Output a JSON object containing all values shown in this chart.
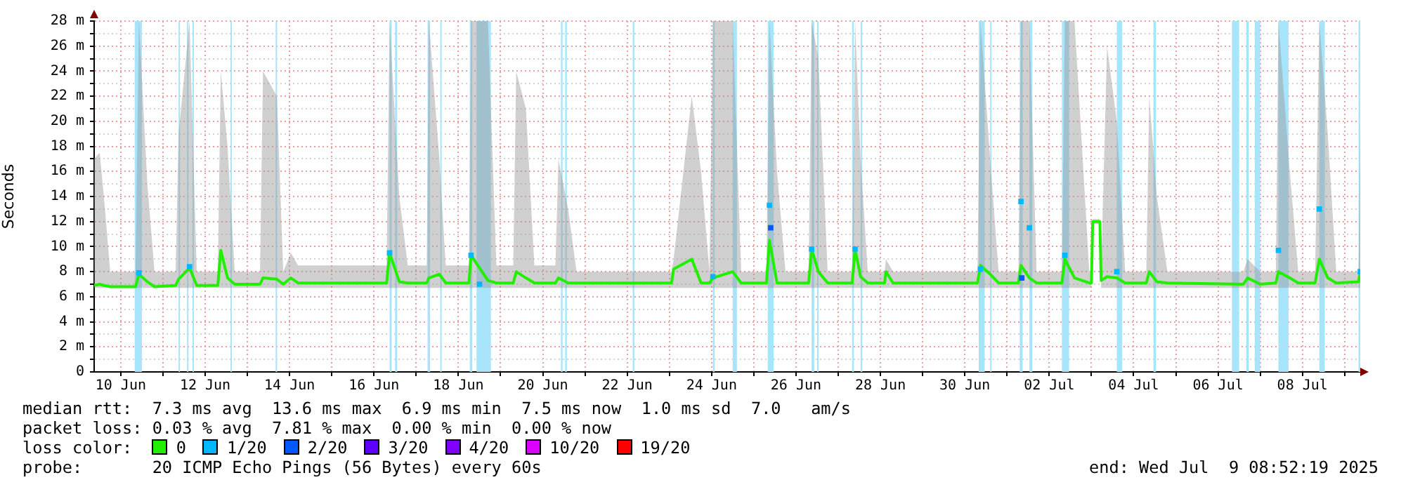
{
  "chart_data": {
    "type": "line",
    "ylabel": "Seconds",
    "legend_title": "loss color:",
    "legend": "bottom",
    "grid": true,
    "marker": "none",
    "line_style": "solid",
    "xlim": [
      "2025-06-09T08:52",
      "2025-07-09T08:52"
    ],
    "xticks": [
      {
        "value": "2025-06-10",
        "label": "10 Jun"
      },
      {
        "value": "2025-06-11",
        "label": null
      },
      {
        "value": "2025-06-12",
        "label": "12 Jun"
      },
      {
        "value": "2025-06-13",
        "label": null
      },
      {
        "value": "2025-06-14",
        "label": "14 Jun"
      },
      {
        "value": "2025-06-15",
        "label": null
      },
      {
        "value": "2025-06-16",
        "label": "16 Jun"
      },
      {
        "value": "2025-06-17",
        "label": null
      },
      {
        "value": "2025-06-18",
        "label": "18 Jun"
      },
      {
        "value": "2025-06-19",
        "label": null
      },
      {
        "value": "2025-06-20",
        "label": "20 Jun"
      },
      {
        "value": "2025-06-21",
        "label": null
      },
      {
        "value": "2025-06-22",
        "label": "22 Jun"
      },
      {
        "value": "2025-06-23",
        "label": null
      },
      {
        "value": "2025-06-24",
        "label": "24 Jun"
      },
      {
        "value": "2025-06-25",
        "label": null
      },
      {
        "value": "2025-06-26",
        "label": "26 Jun"
      },
      {
        "value": "2025-06-27",
        "label": null
      },
      {
        "value": "2025-06-28",
        "label": "28 Jun"
      },
      {
        "value": "2025-06-29",
        "label": null
      },
      {
        "value": "2025-06-30",
        "label": "30 Jun"
      },
      {
        "value": "2025-07-01",
        "label": null
      },
      {
        "value": "2025-07-02",
        "label": "02 Jul"
      },
      {
        "value": "2025-07-03",
        "label": null
      },
      {
        "value": "2025-07-04",
        "label": "04 Jul"
      },
      {
        "value": "2025-07-05",
        "label": null
      },
      {
        "value": "2025-07-06",
        "label": "06 Jul"
      },
      {
        "value": "2025-07-07",
        "label": null
      },
      {
        "value": "2025-07-08",
        "label": "08 Jul"
      },
      {
        "value": "2025-07-09",
        "label": null
      }
    ],
    "ylim": [
      0,
      28
    ],
    "yticks": [
      0,
      {
        "value": 1,
        "label": null
      },
      {
        "value": 2,
        "label": "2 m"
      },
      {
        "value": 3,
        "label": null
      },
      {
        "value": 4,
        "label": "4 m"
      },
      {
        "value": 5,
        "label": null
      },
      {
        "value": 6,
        "label": "6 m"
      },
      {
        "value": 7,
        "label": null
      },
      {
        "value": 8,
        "label": "8 m"
      },
      {
        "value": 9,
        "label": null
      },
      {
        "value": 10,
        "label": "10 m"
      },
      {
        "value": 11,
        "label": null
      },
      {
        "value": 12,
        "label": "12 m"
      },
      {
        "value": 13,
        "label": null
      },
      {
        "value": 14,
        "label": "14 m"
      },
      {
        "value": 15,
        "label": null
      },
      {
        "value": 16,
        "label": "16 m"
      },
      {
        "value": 17,
        "label": null
      },
      {
        "value": 18,
        "label": "18 m"
      },
      {
        "value": 19,
        "label": null
      },
      {
        "value": 20,
        "label": "20 m"
      },
      {
        "value": 21,
        "label": null
      },
      {
        "value": 22,
        "label": "22 m"
      },
      {
        "value": 23,
        "label": null
      },
      {
        "value": 24,
        "label": "24 m"
      },
      {
        "value": 25,
        "label": null
      },
      {
        "value": 26,
        "label": "26 m"
      },
      {
        "value": 27,
        "label": null
      },
      {
        "value": 28,
        "label": "28 m"
      }
    ],
    "bands": [
      {
        "axis": "x",
        "from": "2025-06-10T07:55",
        "to": "2025-06-10T12:00",
        "color": "#a8e4fa"
      },
      {
        "axis": "x",
        "from": "2025-06-11T08:53",
        "to": "2025-06-11T09:36",
        "color": "#a8e4fa"
      },
      {
        "axis": "x",
        "from": "2025-06-11T13:41",
        "to": "2025-06-11T14:24",
        "color": "#a8e4fa"
      },
      {
        "axis": "x",
        "from": "2025-06-11T16:48",
        "to": "2025-06-11T17:31",
        "color": "#a8e4fa"
      },
      {
        "axis": "x",
        "from": "2025-06-12T14:24",
        "to": "2025-06-12T15:07",
        "color": "#a8e4fa"
      },
      {
        "axis": "x",
        "from": "2025-06-13T16:05",
        "to": "2025-06-13T16:48",
        "color": "#a8e4fa"
      },
      {
        "axis": "x",
        "from": "2025-06-16T08:53",
        "to": "2025-06-16T10:05",
        "color": "#a8e4fa"
      },
      {
        "axis": "x",
        "from": "2025-06-16T12:00",
        "to": "2025-06-16T13:12",
        "color": "#a8e4fa"
      },
      {
        "axis": "x",
        "from": "2025-06-17T06:29",
        "to": "2025-06-17T07:55",
        "color": "#a8e4fa"
      },
      {
        "axis": "x",
        "from": "2025-06-17T13:41",
        "to": "2025-06-17T14:24",
        "color": "#a8e4fa"
      },
      {
        "axis": "x",
        "from": "2025-06-18T06:29",
        "to": "2025-06-18T07:55",
        "color": "#a8e4fa"
      },
      {
        "axis": "x",
        "from": "2025-06-18T10:19",
        "to": "2025-06-18T18:29",
        "color": "#a8e4fa"
      },
      {
        "axis": "x",
        "from": "2025-06-20T10:19",
        "to": "2025-06-20T11:17",
        "color": "#a8e4fa"
      },
      {
        "axis": "x",
        "from": "2025-06-20T12:43",
        "to": "2025-06-20T13:41",
        "color": "#a8e4fa"
      },
      {
        "axis": "x",
        "from": "2025-06-22T03:07",
        "to": "2025-06-22T04:05",
        "color": "#a8e4fa"
      },
      {
        "axis": "x",
        "from": "2025-06-24T00:43",
        "to": "2025-06-24T01:41",
        "color": "#a8e4fa"
      },
      {
        "axis": "x",
        "from": "2025-06-24T12:00",
        "to": "2025-06-24T14:24",
        "color": "#a8e4fa"
      },
      {
        "axis": "x",
        "from": "2025-06-25T07:55",
        "to": "2025-06-25T11:17",
        "color": "#a8e4fa"
      },
      {
        "axis": "x",
        "from": "2025-06-26T08:53",
        "to": "2025-06-26T10:19",
        "color": "#a8e4fa"
      },
      {
        "axis": "x",
        "from": "2025-06-26T12:00",
        "to": "2025-06-26T12:43",
        "color": "#a8e4fa"
      },
      {
        "axis": "x",
        "from": "2025-06-27T07:55",
        "to": "2025-06-27T08:53",
        "color": "#a8e4fa"
      },
      {
        "axis": "x",
        "from": "2025-06-27T12:43",
        "to": "2025-06-27T13:41",
        "color": "#a8e4fa"
      },
      {
        "axis": "x",
        "from": "2025-06-30T07:55",
        "to": "2025-06-30T11:17",
        "color": "#a8e4fa"
      },
      {
        "axis": "x",
        "from": "2025-06-30T14:24",
        "to": "2025-06-30T15:07",
        "color": "#a8e4fa"
      },
      {
        "axis": "x",
        "from": "2025-07-01T07:12",
        "to": "2025-07-01T08:53",
        "color": "#a8e4fa"
      },
      {
        "axis": "x",
        "from": "2025-07-01T12:43",
        "to": "2025-07-01T14:24",
        "color": "#a8e4fa"
      },
      {
        "axis": "x",
        "from": "2025-07-02T07:12",
        "to": "2025-07-02T11:17",
        "color": "#a8e4fa"
      },
      {
        "axis": "x",
        "from": "2025-07-03T14:24",
        "to": "2025-07-03T17:31",
        "color": "#a8e4fa"
      },
      {
        "axis": "x",
        "from": "2025-07-04T11:17",
        "to": "2025-07-04T12:43",
        "color": "#a8e4fa"
      },
      {
        "axis": "x",
        "from": "2025-07-06T07:55",
        "to": "2025-07-06T12:00",
        "color": "#a8e4fa"
      },
      {
        "axis": "x",
        "from": "2025-07-06T16:05",
        "to": "2025-07-06T17:31",
        "color": "#a8e4fa"
      },
      {
        "axis": "x",
        "from": "2025-07-06T20:53",
        "to": "2025-07-07T00:00",
        "color": "#a8e4fa"
      },
      {
        "axis": "x",
        "from": "2025-07-07T10:19",
        "to": "2025-07-07T16:05",
        "color": "#a8e4fa"
      },
      {
        "axis": "x",
        "from": "2025-07-08T09:36",
        "to": "2025-07-08T12:43",
        "color": "#a8e4fa"
      },
      {
        "axis": "x",
        "from": "2025-07-09T07:55",
        "to": "2025-07-09T08:52",
        "color": "#a8e4fa"
      }
    ],
    "series": [
      {
        "name": "0",
        "color": "#20f000",
        "x": [
          "2025-06-09T08:52",
          "2025-06-09T12:00",
          "2025-06-09T14:24",
          "2025-06-09T18:00",
          "2025-06-10T08:24",
          "2025-06-10T10:19",
          "2025-06-10T15:07",
          "2025-06-10T19:12",
          "2025-06-11T07:12",
          "2025-06-11T08:53",
          "2025-06-11T15:07",
          "2025-06-11T19:12",
          "2025-06-12T07:12",
          "2025-06-12T08:53",
          "2025-06-12T12:43",
          "2025-06-12T16:48",
          "2025-06-13T07:12",
          "2025-06-13T08:53",
          "2025-06-13T16:48",
          "2025-06-13T20:24",
          "2025-06-14T00:43",
          "2025-06-14T04:48",
          "2025-06-16T07:12",
          "2025-06-16T08:53",
          "2025-06-16T14:24",
          "2025-06-16T19:12",
          "2025-06-17T06:00",
          "2025-06-17T07:12",
          "2025-06-17T13:12",
          "2025-06-17T16:48",
          "2025-06-18T06:00",
          "2025-06-18T07:12",
          "2025-06-18T16:48",
          "2025-06-18T21:36",
          "2025-06-19T07:12",
          "2025-06-19T08:53",
          "2025-06-19T14:24",
          "2025-06-19T19:12",
          "2025-06-20T07:12",
          "2025-06-20T08:53",
          "2025-06-20T14:24",
          "2025-06-20T19:12",
          "2025-06-23T01:12",
          "2025-06-23T02:24",
          "2025-06-23T12:43",
          "2025-06-23T18:00",
          "2025-06-23T22:48",
          "2025-06-24T00:43",
          "2025-06-24T12:00",
          "2025-06-24T16:48",
          "2025-06-25T07:12",
          "2025-06-25T08:53",
          "2025-06-25T13:12",
          "2025-06-25T18:00",
          "2025-06-26T07:12",
          "2025-06-26T08:53",
          "2025-06-26T12:43",
          "2025-06-26T18:00",
          "2025-06-27T07:55",
          "2025-06-27T09:36",
          "2025-06-27T12:43",
          "2025-06-27T16:48",
          "2025-06-28T02:24",
          "2025-06-28T03:07",
          "2025-06-28T07:12",
          "2025-06-30T07:12",
          "2025-06-30T08:53",
          "2025-06-30T14:24",
          "2025-06-30T19:12",
          "2025-07-01T06:29",
          "2025-07-01T07:55",
          "2025-07-01T12:43",
          "2025-07-01T16:48",
          "2025-07-02T07:12",
          "2025-07-02T08:53",
          "2025-07-02T14:24",
          "2025-07-02T22:48",
          "2025-07-03T00:00",
          "2025-07-03T00:43",
          "2025-07-03T04:48",
          "2025-07-03T05:31",
          "2025-07-03T08:53",
          "2025-07-03T14:24",
          "2025-07-03T19:12",
          "2025-07-04T07:12",
          "2025-07-04T08:53",
          "2025-07-04T13:12",
          "2025-07-04T19:12",
          "2025-07-06T14:24",
          "2025-07-06T16:48",
          "2025-07-07T00:00",
          "2025-07-07T08:53",
          "2025-07-07T10:19",
          "2025-07-07T16:48",
          "2025-07-07T21:36",
          "2025-07-08T07:12",
          "2025-07-08T09:36",
          "2025-07-08T14:24",
          "2025-07-08T19:12",
          "2025-07-09T07:55",
          "2025-07-09T08:52"
        ],
        "values": [
          6.9,
          7.0,
          6.9,
          6.8,
          6.8,
          7.8,
          7.2,
          6.8,
          6.9,
          7.4,
          8.3,
          6.9,
          6.9,
          9.7,
          7.5,
          7.0,
          7.0,
          7.5,
          7.4,
          7.0,
          7.5,
          7.1,
          7.1,
          9.5,
          7.2,
          7.1,
          7.1,
          7.5,
          7.8,
          7.1,
          7.1,
          9.3,
          7.3,
          7.1,
          7.1,
          8.0,
          7.5,
          7.1,
          7.1,
          7.5,
          7.1,
          7.1,
          7.1,
          8.2,
          9.0,
          7.1,
          7.1,
          7.5,
          8.0,
          7.1,
          7.1,
          10.5,
          7.1,
          7.1,
          7.1,
          9.8,
          8.0,
          7.1,
          7.1,
          9.8,
          7.6,
          7.1,
          7.1,
          8.0,
          7.1,
          7.1,
          8.5,
          7.8,
          7.1,
          7.1,
          8.5,
          7.5,
          7.1,
          7.1,
          9.0,
          7.5,
          7.1,
          7.1,
          12.0,
          12.0,
          7.3,
          7.6,
          7.5,
          7.1,
          7.1,
          8.0,
          7.2,
          7.1,
          7.0,
          7.5,
          7.0,
          7.1,
          8.0,
          7.5,
          7.1,
          7.1,
          9.0,
          7.5,
          7.1,
          7.2,
          8.0
        ],
        "lower": [
          6.7,
          6.7,
          6.7,
          6.7,
          6.7,
          6.7,
          6.7,
          6.7,
          6.7,
          6.7,
          6.7,
          6.7,
          6.7,
          6.7,
          6.7,
          6.7,
          6.7,
          6.7,
          6.7,
          6.7,
          6.7,
          6.7,
          6.7,
          6.7,
          6.7,
          6.7,
          6.7,
          6.7,
          6.7,
          6.7,
          6.7,
          6.7,
          6.7,
          6.7,
          6.7,
          6.7,
          6.7,
          6.7,
          6.7,
          6.7,
          6.7,
          6.7,
          6.7,
          6.7,
          6.7,
          6.7,
          6.7,
          6.7,
          6.7,
          6.7,
          6.7,
          6.7,
          6.7,
          6.7,
          6.7,
          6.7,
          6.7,
          6.7,
          6.7,
          6.7,
          6.7,
          6.7,
          6.7,
          6.7,
          6.7,
          6.7,
          6.7,
          6.7,
          6.7,
          6.7,
          6.7,
          6.7,
          6.7,
          6.7,
          6.7,
          6.7,
          6.7,
          6.7,
          11.8,
          11.8,
          6.7,
          6.7,
          6.7,
          6.7,
          6.7,
          6.7,
          6.7,
          6.7,
          6.7,
          6.7,
          6.7,
          6.7,
          6.7,
          6.7,
          6.7,
          6.7,
          6.7,
          6.7,
          6.7,
          6.7,
          6.7
        ],
        "upper": [
          17,
          17.5,
          14,
          8,
          8,
          28,
          15,
          8,
          8,
          19,
          28,
          8,
          8,
          24,
          18,
          8,
          8,
          24,
          22,
          8,
          9.5,
          8.5,
          8.5,
          28,
          14,
          8.5,
          8.5,
          28,
          17,
          8.5,
          8.5,
          28,
          28,
          8.5,
          8.5,
          24,
          21,
          8.5,
          8.5,
          17,
          13,
          8,
          8,
          9,
          22,
          16,
          8,
          28,
          28,
          8,
          8,
          28,
          16,
          8,
          8,
          28,
          25,
          8,
          8,
          28,
          17,
          8,
          8,
          9,
          8,
          8,
          28,
          17,
          8,
          8,
          28,
          28,
          8,
          8,
          28,
          28,
          8,
          8,
          12.2,
          12.2,
          8,
          26,
          20,
          8,
          8,
          22,
          14,
          8,
          8,
          9,
          8,
          8,
          28,
          16,
          8,
          8,
          28,
          19,
          8,
          8,
          20
        ]
      },
      {
        "name": "1/20",
        "color": "#00b8ff",
        "type": "scatter",
        "marker": "square",
        "x": [
          "2025-06-10T10:19",
          "2025-06-11T15:07",
          "2025-06-16T08:53",
          "2025-06-18T07:12",
          "2025-06-18T12:00",
          "2025-06-24T00:43",
          "2025-06-25T08:53",
          "2025-06-26T08:53",
          "2025-06-27T09:36",
          "2025-06-30T08:53",
          "2025-07-01T07:55",
          "2025-07-01T12:43",
          "2025-07-02T08:53",
          "2025-07-03T14:24",
          "2025-07-07T10:19",
          "2025-07-08T09:36",
          "2025-07-09T08:52"
        ],
        "values": [
          7.9,
          8.4,
          9.5,
          9.3,
          7.0,
          7.6,
          13.3,
          9.8,
          9.8,
          8.2,
          13.6,
          11.5,
          9.3,
          8.0,
          9.7,
          13.0,
          8.0
        ]
      },
      {
        "name": "2/20",
        "color": "#0059ff",
        "type": "scatter",
        "marker": "square",
        "x": [
          "2025-06-25T09:36",
          "2025-07-01T08:24"
        ],
        "values": [
          11.5,
          7.5
        ]
      },
      {
        "name": "3/20",
        "color": "#5e00ff",
        "type": "scatter",
        "marker": "square"
      },
      {
        "name": "4/20",
        "color": "#8000ff",
        "type": "scatter",
        "marker": "square"
      },
      {
        "name": "10/20",
        "color": "#dd00ff",
        "type": "scatter",
        "marker": "square"
      },
      {
        "name": "19/20",
        "color": "#ff0000",
        "type": "scatter",
        "marker": "square"
      }
    ],
    "annotations": [
      "median rtt:  7.3 ms avg  13.6 ms max  6.9 ms min  7.5 ms now  1.0 ms sd  7.0   am/s",
      "packet loss: 0.03 % avg  7.81 % max  0.00 % min  0.00 % now",
      "probe:       20 ICMP Echo Pings (56 Bytes) every 60s",
      "end: Wed Jul  9 08:52:19 2025"
    ]
  }
}
